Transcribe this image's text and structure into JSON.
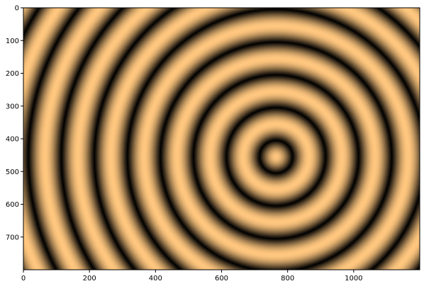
{
  "chart_data": {
    "type": "heatmap",
    "title": "",
    "xlabel": "",
    "ylabel": "",
    "xlim": [
      0,
      1200
    ],
    "ylim": [
      800,
      0
    ],
    "colormap": "copper",
    "colormap_stops": [
      "#000000",
      "#ffc77f"
    ],
    "grid": false,
    "pattern": {
      "kind": "concentric-rings",
      "center": [
        765,
        455
      ],
      "ring_spacing": 100
    },
    "x_ticks": [
      {
        "value": 0,
        "label": "0"
      },
      {
        "value": 200,
        "label": "200"
      },
      {
        "value": 400,
        "label": "400"
      },
      {
        "value": 600,
        "label": "600"
      },
      {
        "value": 800,
        "label": "800"
      },
      {
        "value": 1000,
        "label": "1000"
      }
    ],
    "y_ticks": [
      {
        "value": 0,
        "label": "0"
      },
      {
        "value": 100,
        "label": "100"
      },
      {
        "value": 200,
        "label": "200"
      },
      {
        "value": 300,
        "label": "300"
      },
      {
        "value": 400,
        "label": "400"
      },
      {
        "value": 500,
        "label": "500"
      },
      {
        "value": 600,
        "label": "600"
      },
      {
        "value": 700,
        "label": "700"
      }
    ]
  }
}
